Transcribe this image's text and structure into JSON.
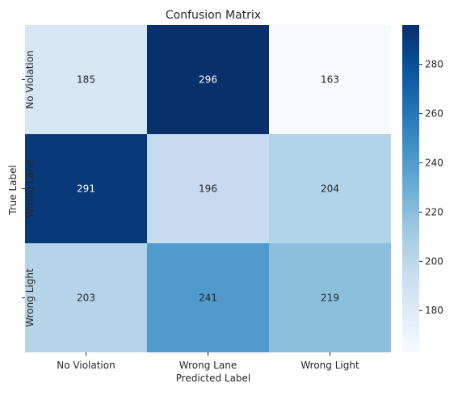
{
  "chart_data": {
    "type": "heatmap",
    "title": "Confusion Matrix",
    "xlabel": "Predicted Label",
    "ylabel": "True Label",
    "x_categories": [
      "No Violation",
      "Wrong Lane",
      "Wrong Light"
    ],
    "y_categories": [
      "No Violation",
      "Wrong Lane",
      "Wrong Light"
    ],
    "values": [
      [
        185,
        296,
        163
      ],
      [
        291,
        196,
        204
      ],
      [
        203,
        241,
        219
      ]
    ],
    "colormap": "Blues",
    "color_range": [
      163,
      296
    ],
    "colorbar_ticks": [
      180,
      200,
      220,
      240,
      260,
      280
    ],
    "colorbar_tick_labels": [
      "180",
      "200",
      "220",
      "240",
      "260",
      "280"
    ]
  }
}
